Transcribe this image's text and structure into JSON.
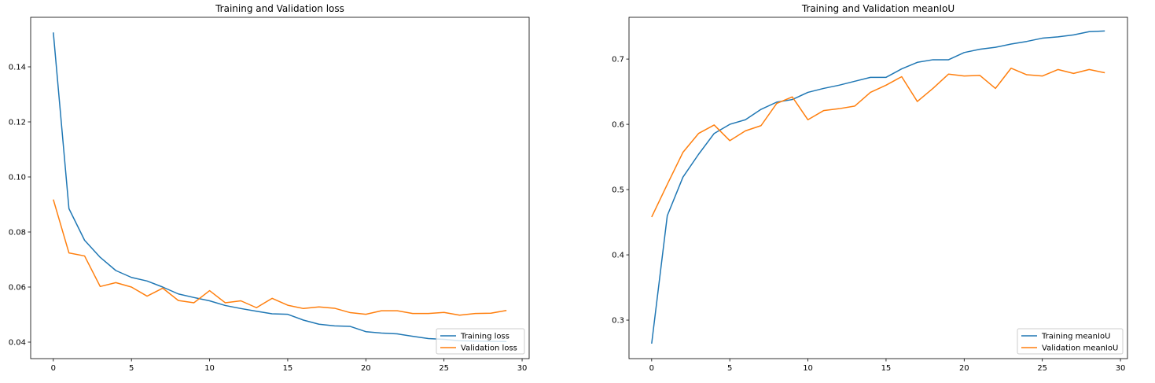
{
  "chart_data": [
    {
      "type": "line",
      "title": "Training and Validation loss",
      "xlabel": "",
      "ylabel": "",
      "xlim": [
        -1.45,
        30.45
      ],
      "ylim": [
        0.034,
        0.158
      ],
      "xticks": [
        0,
        5,
        10,
        15,
        20,
        25,
        30
      ],
      "xtick_labels": [
        "0",
        "5",
        "10",
        "15",
        "20",
        "25",
        "30"
      ],
      "yticks": [
        0.04,
        0.06,
        0.08,
        0.1,
        0.12,
        0.14
      ],
      "ytick_labels": [
        "0.04",
        "0.06",
        "0.08",
        "0.10",
        "0.12",
        "0.14"
      ],
      "grid": false,
      "legend_position": "lower right",
      "x": [
        0,
        1,
        2,
        3,
        4,
        5,
        6,
        7,
        8,
        9,
        10,
        11,
        12,
        13,
        14,
        15,
        16,
        17,
        18,
        19,
        20,
        21,
        22,
        23,
        24,
        25,
        26,
        27,
        28,
        29
      ],
      "series": [
        {
          "name": "Training loss",
          "color": "#1f77b4",
          "values": [
            0.1525,
            0.0885,
            0.077,
            0.0708,
            0.066,
            0.0635,
            0.0622,
            0.06,
            0.0575,
            0.0562,
            0.055,
            0.0533,
            0.0522,
            0.0512,
            0.0503,
            0.0501,
            0.048,
            0.0465,
            0.0459,
            0.0457,
            0.0438,
            0.0433,
            0.043,
            0.0421,
            0.0413,
            0.041,
            0.0405,
            0.0404,
            0.0403,
            0.0402
          ]
        },
        {
          "name": "Validation loss",
          "color": "#ff7f0e",
          "values": [
            0.0918,
            0.0724,
            0.0713,
            0.0602,
            0.0616,
            0.06,
            0.0567,
            0.0596,
            0.0551,
            0.0543,
            0.0587,
            0.0543,
            0.055,
            0.0525,
            0.0559,
            0.0534,
            0.0522,
            0.0528,
            0.0523,
            0.0507,
            0.0501,
            0.0514,
            0.0514,
            0.0504,
            0.0504,
            0.0508,
            0.0498,
            0.0504,
            0.0505,
            0.0515
          ]
        }
      ]
    },
    {
      "type": "line",
      "title": "Training and Validation meanIoU",
      "xlabel": "",
      "ylabel": "",
      "xlim": [
        -1.45,
        30.45
      ],
      "ylim": [
        0.241,
        0.764
      ],
      "xticks": [
        0,
        5,
        10,
        15,
        20,
        25,
        30
      ],
      "xtick_labels": [
        "0",
        "5",
        "10",
        "15",
        "20",
        "25",
        "30"
      ],
      "yticks": [
        0.3,
        0.4,
        0.5,
        0.6,
        0.7
      ],
      "ytick_labels": [
        "0.3",
        "0.4",
        "0.5",
        "0.6",
        "0.7"
      ],
      "grid": false,
      "legend_position": "lower right",
      "x": [
        0,
        1,
        2,
        3,
        4,
        5,
        6,
        7,
        8,
        9,
        10,
        11,
        12,
        13,
        14,
        15,
        16,
        17,
        18,
        19,
        20,
        21,
        22,
        23,
        24,
        25,
        26,
        27,
        28,
        29
      ],
      "series": [
        {
          "name": "Training meanIoU",
          "color": "#1f77b4",
          "values": [
            0.264,
            0.46,
            0.519,
            0.554,
            0.586,
            0.6,
            0.607,
            0.623,
            0.634,
            0.638,
            0.649,
            0.655,
            0.66,
            0.666,
            0.672,
            0.672,
            0.685,
            0.695,
            0.699,
            0.699,
            0.71,
            0.715,
            0.718,
            0.723,
            0.727,
            0.732,
            0.734,
            0.737,
            0.742,
            0.743
          ]
        },
        {
          "name": "Validation meanIoU",
          "color": "#ff7f0e",
          "values": [
            0.458,
            0.508,
            0.557,
            0.586,
            0.599,
            0.575,
            0.59,
            0.598,
            0.632,
            0.642,
            0.607,
            0.621,
            0.624,
            0.628,
            0.649,
            0.66,
            0.673,
            0.635,
            0.655,
            0.677,
            0.674,
            0.675,
            0.655,
            0.686,
            0.676,
            0.674,
            0.684,
            0.678,
            0.684,
            0.679
          ]
        }
      ]
    }
  ]
}
